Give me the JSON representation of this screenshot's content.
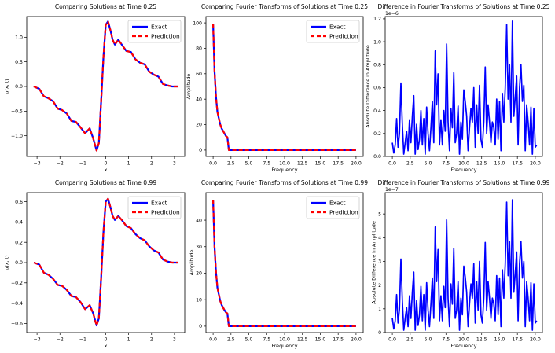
{
  "chart_data": [
    {
      "id": "sol025",
      "type": "line",
      "title": "Comparing Solutions at Time 0.25",
      "xlabel": "x",
      "ylabel": "u(x, t)",
      "xlim": [
        -3.45,
        3.45
      ],
      "ylim": [
        -1.42,
        1.42
      ],
      "xticks": [
        -3,
        -2,
        -1,
        0,
        1,
        2,
        3
      ],
      "xtick_labels": [
        "−3",
        "−2",
        "−1",
        "0",
        "1",
        "2",
        "3"
      ],
      "yticks": [
        -1.0,
        -0.5,
        0.0,
        0.5,
        1.0
      ],
      "ytick_labels": [
        "−1.0",
        "−0.5",
        "0.0",
        "0.5",
        "1.0"
      ],
      "legend": {
        "position": "upper-right",
        "entries": [
          "Exact",
          "Prediction"
        ]
      },
      "series": [
        {
          "name": "Exact",
          "color": "#0000ff",
          "style": "solid"
        },
        {
          "name": "Prediction",
          "color": "#ff0000",
          "style": "dashed"
        }
      ],
      "x": [
        -3.1416,
        -2.9,
        -2.7,
        -2.5,
        -2.3,
        -2.1,
        -1.9,
        -1.7,
        -1.5,
        -1.3,
        -1.1,
        -0.9,
        -0.7,
        -0.55,
        -0.4,
        -0.3,
        -0.2,
        -0.1,
        0.0,
        0.1,
        0.2,
        0.3,
        0.4,
        0.55,
        0.7,
        0.9,
        1.1,
        1.3,
        1.5,
        1.7,
        1.9,
        2.1,
        2.3,
        2.5,
        2.7,
        2.9,
        3.1416
      ],
      "values": [
        0.0,
        -0.05,
        -0.2,
        -0.24,
        -0.3,
        -0.45,
        -0.48,
        -0.55,
        -0.7,
        -0.72,
        -0.83,
        -0.95,
        -0.85,
        -1.05,
        -1.3,
        -1.15,
        -0.3,
        0.6,
        1.25,
        1.32,
        1.15,
        0.95,
        0.85,
        0.95,
        0.85,
        0.72,
        0.7,
        0.55,
        0.48,
        0.45,
        0.3,
        0.24,
        0.2,
        0.05,
        0.02,
        0.0,
        0.0
      ]
    },
    {
      "id": "fft025",
      "type": "line",
      "title": "Comparing Fourier Transforms of Solutions at Time 0.25",
      "xlabel": "Frequency",
      "ylabel": "Amplitude",
      "xlim": [
        -1.0,
        21.0
      ],
      "ylim": [
        -5,
        105
      ],
      "xticks": [
        0,
        2.5,
        5,
        7.5,
        10,
        12.5,
        15,
        17.5,
        20
      ],
      "xtick_labels": [
        "0.0",
        "2.5",
        "5.0",
        "7.5",
        "10.0",
        "12.5",
        "15.0",
        "17.5",
        "20.0"
      ],
      "yticks": [
        0,
        20,
        40,
        60,
        80,
        100
      ],
      "ytick_labels": [
        "0",
        "20",
        "40",
        "60",
        "80",
        "100"
      ],
      "legend": {
        "position": "upper-right",
        "entries": [
          "Exact",
          "Prediction"
        ]
      },
      "series": [
        {
          "name": "Exact",
          "color": "#0000ff",
          "style": "solid"
        },
        {
          "name": "Prediction",
          "color": "#ff0000",
          "style": "dashed"
        }
      ],
      "x": [
        0,
        0.2,
        0.4,
        0.6,
        0.8,
        1.0,
        1.2,
        1.4,
        1.6,
        1.8,
        2.0,
        2.2,
        20.0
      ],
      "values": [
        99,
        62,
        42,
        30,
        25,
        20,
        17,
        15,
        13,
        11,
        10,
        0,
        0
      ]
    },
    {
      "id": "diff025",
      "type": "line",
      "title": "Difference in Fourier Transforms of Solutions at Time 0.25",
      "xlabel": "Frequency",
      "ylabel": "Absolute Difference in Amplitude",
      "exponent_label": "1e−6",
      "xlim": [
        -1.0,
        21.0
      ],
      "ylim": [
        0,
        1.22
      ],
      "xticks": [
        0,
        2.5,
        5,
        7.5,
        10,
        12.5,
        15,
        17.5,
        20
      ],
      "xtick_labels": [
        "0.0",
        "2.5",
        "5.0",
        "7.5",
        "10.0",
        "12.5",
        "15.0",
        "17.5",
        "20.0"
      ],
      "yticks": [
        0.0,
        0.2,
        0.4,
        0.6,
        0.8,
        1.0,
        1.2
      ],
      "ytick_labels": [
        "0.0",
        "0.2",
        "0.4",
        "0.6",
        "0.8",
        "1.0",
        "1.2"
      ],
      "series": [
        {
          "name": "Difference",
          "color": "#0000ff",
          "style": "solid"
        }
      ],
      "x": [
        0.0,
        0.2,
        0.4,
        0.6,
        0.8,
        1.0,
        1.2,
        1.4,
        1.6,
        1.8,
        2.0,
        2.2,
        2.4,
        2.6,
        2.8,
        3.0,
        3.2,
        3.4,
        3.6,
        3.8,
        4.0,
        4.2,
        4.4,
        4.6,
        4.8,
        5.0,
        5.2,
        5.4,
        5.6,
        5.8,
        6.0,
        6.2,
        6.4,
        6.6,
        6.8,
        7.0,
        7.2,
        7.4,
        7.6,
        7.8,
        8.0,
        8.2,
        8.4,
        8.6,
        8.8,
        9.0,
        9.2,
        9.4,
        9.6,
        9.8,
        10.0,
        10.2,
        10.4,
        10.6,
        10.8,
        11.0,
        11.2,
        11.4,
        11.6,
        11.8,
        12.0,
        12.2,
        12.4,
        12.6,
        12.8,
        13.0,
        13.2,
        13.4,
        13.6,
        13.8,
        14.0,
        14.2,
        14.4,
        14.6,
        14.8,
        15.0,
        15.2,
        15.4,
        15.6,
        15.8,
        16.0,
        16.2,
        16.4,
        16.6,
        16.8,
        17.0,
        17.2,
        17.4,
        17.6,
        17.8,
        18.0,
        18.2,
        18.4,
        18.6,
        18.8,
        19.0,
        19.2,
        19.4,
        19.6,
        19.8,
        20.0,
        20.2
      ],
      "values": [
        0.12,
        0.03,
        0.1,
        0.33,
        0.08,
        0.2,
        0.64,
        0.28,
        0.02,
        0.12,
        0.22,
        0.05,
        0.32,
        0.12,
        0.35,
        0.53,
        0.02,
        0.28,
        0.06,
        0.15,
        0.4,
        0.1,
        0.33,
        0.02,
        0.43,
        0.2,
        0.05,
        0.25,
        0.48,
        0.12,
        0.92,
        0.45,
        0.72,
        0.1,
        0.32,
        0.1,
        0.4,
        0.22,
        0.98,
        0.3,
        0.05,
        0.42,
        0.25,
        0.73,
        0.12,
        0.2,
        0.44,
        0.02,
        0.3,
        0.15,
        0.58,
        0.48,
        0.35,
        0.05,
        0.25,
        0.42,
        0.3,
        0.6,
        0.08,
        0.45,
        0.2,
        0.62,
        0.15,
        0.08,
        0.3,
        0.78,
        0.2,
        0.45,
        0.3,
        0.12,
        0.3,
        0.25,
        0.1,
        0.5,
        0.15,
        0.48,
        0.05,
        0.55,
        0.3,
        0.6,
        1.15,
        0.5,
        0.8,
        0.3,
        1.18,
        0.35,
        0.52,
        0.7,
        0.1,
        0.6,
        0.8,
        0.48,
        0.62,
        0.05,
        0.45,
        0.3,
        0.1,
        0.43,
        0.02,
        0.42,
        0.08,
        0.1
      ]
    },
    {
      "id": "sol099",
      "type": "line",
      "title": "Comparing Solutions at Time 0.99",
      "xlabel": "x",
      "ylabel": "u(x, t)",
      "xlim": [
        -3.45,
        3.45
      ],
      "ylim": [
        -0.69,
        0.69
      ],
      "xticks": [
        -3,
        -2,
        -1,
        0,
        1,
        2,
        3
      ],
      "xtick_labels": [
        "−3",
        "−2",
        "−1",
        "0",
        "1",
        "2",
        "3"
      ],
      "yticks": [
        -0.6,
        -0.4,
        -0.2,
        0.0,
        0.2,
        0.4,
        0.6
      ],
      "ytick_labels": [
        "−0.6",
        "−0.4",
        "−0.2",
        "0.0",
        "0.2",
        "0.4",
        "0.6"
      ],
      "legend": {
        "position": "upper-right",
        "entries": [
          "Exact",
          "Prediction"
        ]
      },
      "series": [
        {
          "name": "Exact",
          "color": "#0000ff",
          "style": "solid"
        },
        {
          "name": "Prediction",
          "color": "#ff0000",
          "style": "dashed"
        }
      ],
      "x": [
        -3.1416,
        -2.9,
        -2.7,
        -2.5,
        -2.3,
        -2.1,
        -1.9,
        -1.7,
        -1.5,
        -1.3,
        -1.1,
        -0.9,
        -0.7,
        -0.55,
        -0.4,
        -0.3,
        -0.2,
        -0.1,
        0.0,
        0.1,
        0.2,
        0.3,
        0.4,
        0.55,
        0.7,
        0.9,
        1.1,
        1.3,
        1.5,
        1.7,
        1.9,
        2.1,
        2.3,
        2.5,
        2.7,
        2.9,
        3.1416
      ],
      "values": [
        0.0,
        -0.02,
        -0.1,
        -0.12,
        -0.16,
        -0.22,
        -0.23,
        -0.27,
        -0.33,
        -0.34,
        -0.39,
        -0.46,
        -0.42,
        -0.5,
        -0.62,
        -0.55,
        -0.15,
        0.3,
        0.6,
        0.63,
        0.55,
        0.46,
        0.42,
        0.46,
        0.42,
        0.36,
        0.34,
        0.28,
        0.24,
        0.22,
        0.16,
        0.12,
        0.1,
        0.03,
        0.01,
        0.0,
        0.0
      ]
    },
    {
      "id": "fft099",
      "type": "line",
      "title": "Comparing Fourier Transforms of Solutions at Time 0.99",
      "xlabel": "Frequency",
      "ylabel": "Amplitude",
      "xlim": [
        -1.0,
        21.0
      ],
      "ylim": [
        -2.4,
        50.4
      ],
      "xticks": [
        0,
        2.5,
        5,
        7.5,
        10,
        12.5,
        15,
        17.5,
        20
      ],
      "xtick_labels": [
        "0.0",
        "2.5",
        "5.0",
        "7.5",
        "10.0",
        "12.5",
        "15.0",
        "17.5",
        "20.0"
      ],
      "yticks": [
        0,
        10,
        20,
        30,
        40
      ],
      "ytick_labels": [
        "0",
        "10",
        "20",
        "30",
        "40"
      ],
      "legend": {
        "position": "upper-right",
        "entries": [
          "Exact",
          "Prediction"
        ]
      },
      "series": [
        {
          "name": "Exact",
          "color": "#0000ff",
          "style": "solid"
        },
        {
          "name": "Prediction",
          "color": "#ff0000",
          "style": "dashed"
        }
      ],
      "x": [
        0,
        0.2,
        0.4,
        0.6,
        0.8,
        1.0,
        1.2,
        1.4,
        1.6,
        1.8,
        2.0,
        2.2,
        20.0
      ],
      "values": [
        47.5,
        30,
        20.5,
        14.5,
        12,
        9.5,
        8,
        7,
        6,
        5.2,
        4.8,
        0,
        0
      ]
    },
    {
      "id": "diff099",
      "type": "line",
      "title": "Difference in Fourier Transforms of Solutions at Time 0.99",
      "xlabel": "Frequency",
      "ylabel": "Absolute Difference in Amplitude",
      "exponent_label": "1e−7",
      "xlim": [
        -1.0,
        21.0
      ],
      "ylim": [
        0,
        5.9
      ],
      "xticks": [
        0,
        2.5,
        5,
        7.5,
        10,
        12.5,
        15,
        17.5,
        20
      ],
      "xtick_labels": [
        "0.0",
        "2.5",
        "5.0",
        "7.5",
        "10.0",
        "12.5",
        "15.0",
        "17.5",
        "20.0"
      ],
      "yticks": [
        0,
        1,
        2,
        3,
        4,
        5
      ],
      "ytick_labels": [
        "0",
        "1",
        "2",
        "3",
        "4",
        "5"
      ],
      "series": [
        {
          "name": "Difference",
          "color": "#0000ff",
          "style": "solid"
        }
      ],
      "x": [
        0.0,
        0.2,
        0.4,
        0.6,
        0.8,
        1.0,
        1.2,
        1.4,
        1.6,
        1.8,
        2.0,
        2.2,
        2.4,
        2.6,
        2.8,
        3.0,
        3.2,
        3.4,
        3.6,
        3.8,
        4.0,
        4.2,
        4.4,
        4.6,
        4.8,
        5.0,
        5.2,
        5.4,
        5.6,
        5.8,
        6.0,
        6.2,
        6.4,
        6.6,
        6.8,
        7.0,
        7.2,
        7.4,
        7.6,
        7.8,
        8.0,
        8.2,
        8.4,
        8.6,
        8.8,
        9.0,
        9.2,
        9.4,
        9.6,
        9.8,
        10.0,
        10.2,
        10.4,
        10.6,
        10.8,
        11.0,
        11.2,
        11.4,
        11.6,
        11.8,
        12.0,
        12.2,
        12.4,
        12.6,
        12.8,
        13.0,
        13.2,
        13.4,
        13.6,
        13.8,
        14.0,
        14.2,
        14.4,
        14.6,
        14.8,
        15.0,
        15.2,
        15.4,
        15.6,
        15.8,
        16.0,
        16.2,
        16.4,
        16.6,
        16.8,
        17.0,
        17.2,
        17.4,
        17.6,
        17.8,
        18.0,
        18.2,
        18.4,
        18.6,
        18.8,
        19.0,
        19.2,
        19.4,
        19.6,
        19.8,
        20.0,
        20.2
      ],
      "values": [
        0.6,
        0.15,
        0.5,
        1.6,
        0.4,
        1.0,
        3.1,
        1.35,
        0.1,
        0.6,
        1.05,
        0.25,
        1.55,
        0.6,
        1.7,
        2.55,
        0.1,
        1.35,
        0.3,
        0.75,
        1.95,
        0.5,
        1.6,
        0.1,
        2.1,
        0.95,
        0.25,
        1.2,
        2.3,
        0.6,
        4.45,
        2.15,
        3.5,
        0.5,
        1.55,
        0.5,
        1.95,
        1.05,
        4.75,
        1.45,
        0.25,
        2.05,
        1.2,
        3.55,
        0.6,
        0.95,
        2.15,
        0.1,
        1.45,
        0.75,
        2.8,
        2.35,
        1.7,
        0.25,
        1.2,
        2.05,
        1.45,
        2.9,
        0.4,
        2.15,
        0.95,
        3.0,
        0.75,
        0.4,
        1.45,
        3.8,
        0.95,
        2.15,
        1.45,
        0.6,
        1.45,
        1.2,
        0.5,
        2.4,
        0.75,
        2.3,
        0.25,
        2.65,
        1.45,
        2.9,
        5.5,
        2.4,
        3.85,
        1.45,
        5.6,
        1.7,
        2.5,
        3.4,
        0.5,
        2.9,
        3.85,
        2.3,
        3.0,
        0.25,
        2.15,
        1.45,
        0.5,
        2.1,
        0.1,
        2.05,
        0.4,
        0.5
      ]
    }
  ]
}
